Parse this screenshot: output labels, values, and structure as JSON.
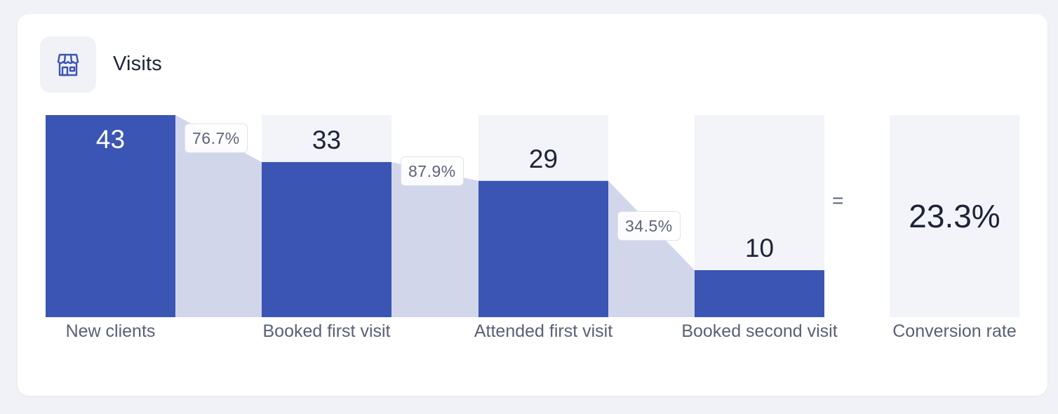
{
  "card": {
    "title": "Visits",
    "icon": "storefront-icon"
  },
  "chart_data": {
    "type": "bar",
    "categories": [
      "New clients",
      "Booked first visit",
      "Attended first visit",
      "Booked second visit"
    ],
    "values": [
      43,
      33,
      29,
      10
    ],
    "step_rates": [
      "76.7%",
      "87.9%",
      "34.5%"
    ],
    "conversion_label": "Conversion rate",
    "conversion_value": "23.3%",
    "equals_sign": "=",
    "ylim": [
      0,
      43
    ]
  },
  "colors": {
    "bar": "#3a55b4",
    "flow": "#d2d6eb",
    "track": "#f3f4f9",
    "value_on_bar": "#ffffff",
    "value_above_bar": "#1e2338"
  }
}
